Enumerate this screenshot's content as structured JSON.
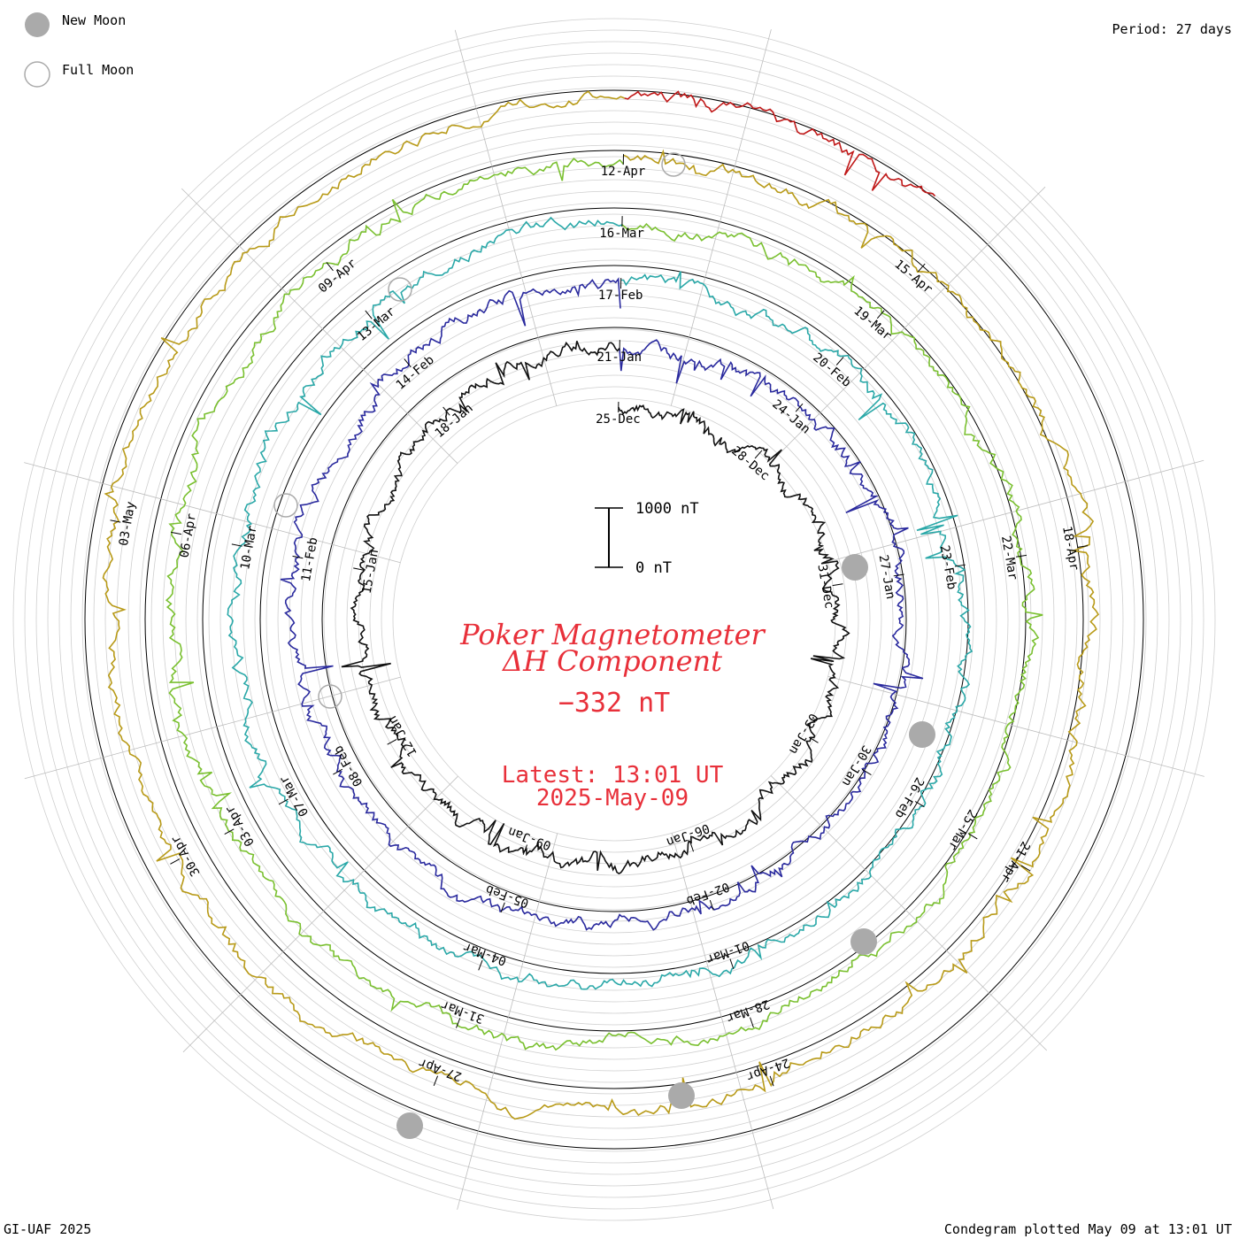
{
  "legend": {
    "new_moon_label": "New Moon",
    "full_moon_label": "Full Moon"
  },
  "header": {
    "period_text": "Period: 27 days"
  },
  "center": {
    "title_line1": "Poker Magnetometer",
    "title_line2": "ΔH Component",
    "current_value": "−332 nT",
    "latest_time": "Latest: 13:01 UT",
    "latest_date": "2025-May-09",
    "scale_top_label": "1000 nT",
    "scale_bottom_label": "0 nT"
  },
  "footer": {
    "left_text": "GI-UAF 2025",
    "right_text": "Condegram plotted May 09 at 13:01 UT"
  },
  "colors": {
    "accent_red": "#e8303a",
    "moon_gray": "#aaaaaa",
    "grid_gray": "#c8c8c8"
  },
  "chart_data": {
    "type": "condegram",
    "period_days": 27,
    "scale_nT": [
      0,
      1000
    ],
    "rotations": [
      {
        "index": 0,
        "color": "#111111",
        "dates": [
          "25-Dec",
          "28-Dec",
          "31-Dec",
          "03-Jan",
          "06-Jan",
          "09-Jan",
          "12-Jan",
          "15-Jan",
          "18-Jan"
        ]
      },
      {
        "index": 1,
        "color": "#2a2a9e",
        "dates": [
          "21-Jan",
          "24-Jan",
          "27-Jan",
          "30-Jan",
          "02-Feb",
          "05-Feb",
          "08-Feb",
          "11-Feb",
          "14-Feb"
        ]
      },
      {
        "index": 2,
        "color": "#2aa8a8",
        "dates": [
          "17-Feb",
          "20-Feb",
          "23-Feb",
          "26-Feb",
          "01-Mar",
          "04-Mar",
          "07-Mar",
          "10-Mar",
          "13-Mar"
        ]
      },
      {
        "index": 3,
        "color": "#7ac030",
        "dates": [
          "16-Mar",
          "19-Mar",
          "22-Mar",
          "25-Mar",
          "28-Mar",
          "31-Mar",
          "03-Apr",
          "06-Apr",
          "09-Apr"
        ]
      },
      {
        "index": 4,
        "color": "#b89a18",
        "dates": [
          "12-Apr",
          "15-Apr",
          "18-Apr",
          "21-Apr",
          "24-Apr",
          "27-Apr",
          "30-Apr",
          "03-May"
        ]
      },
      {
        "index": 5,
        "color": "#c01818",
        "dates": []
      }
    ]
  }
}
